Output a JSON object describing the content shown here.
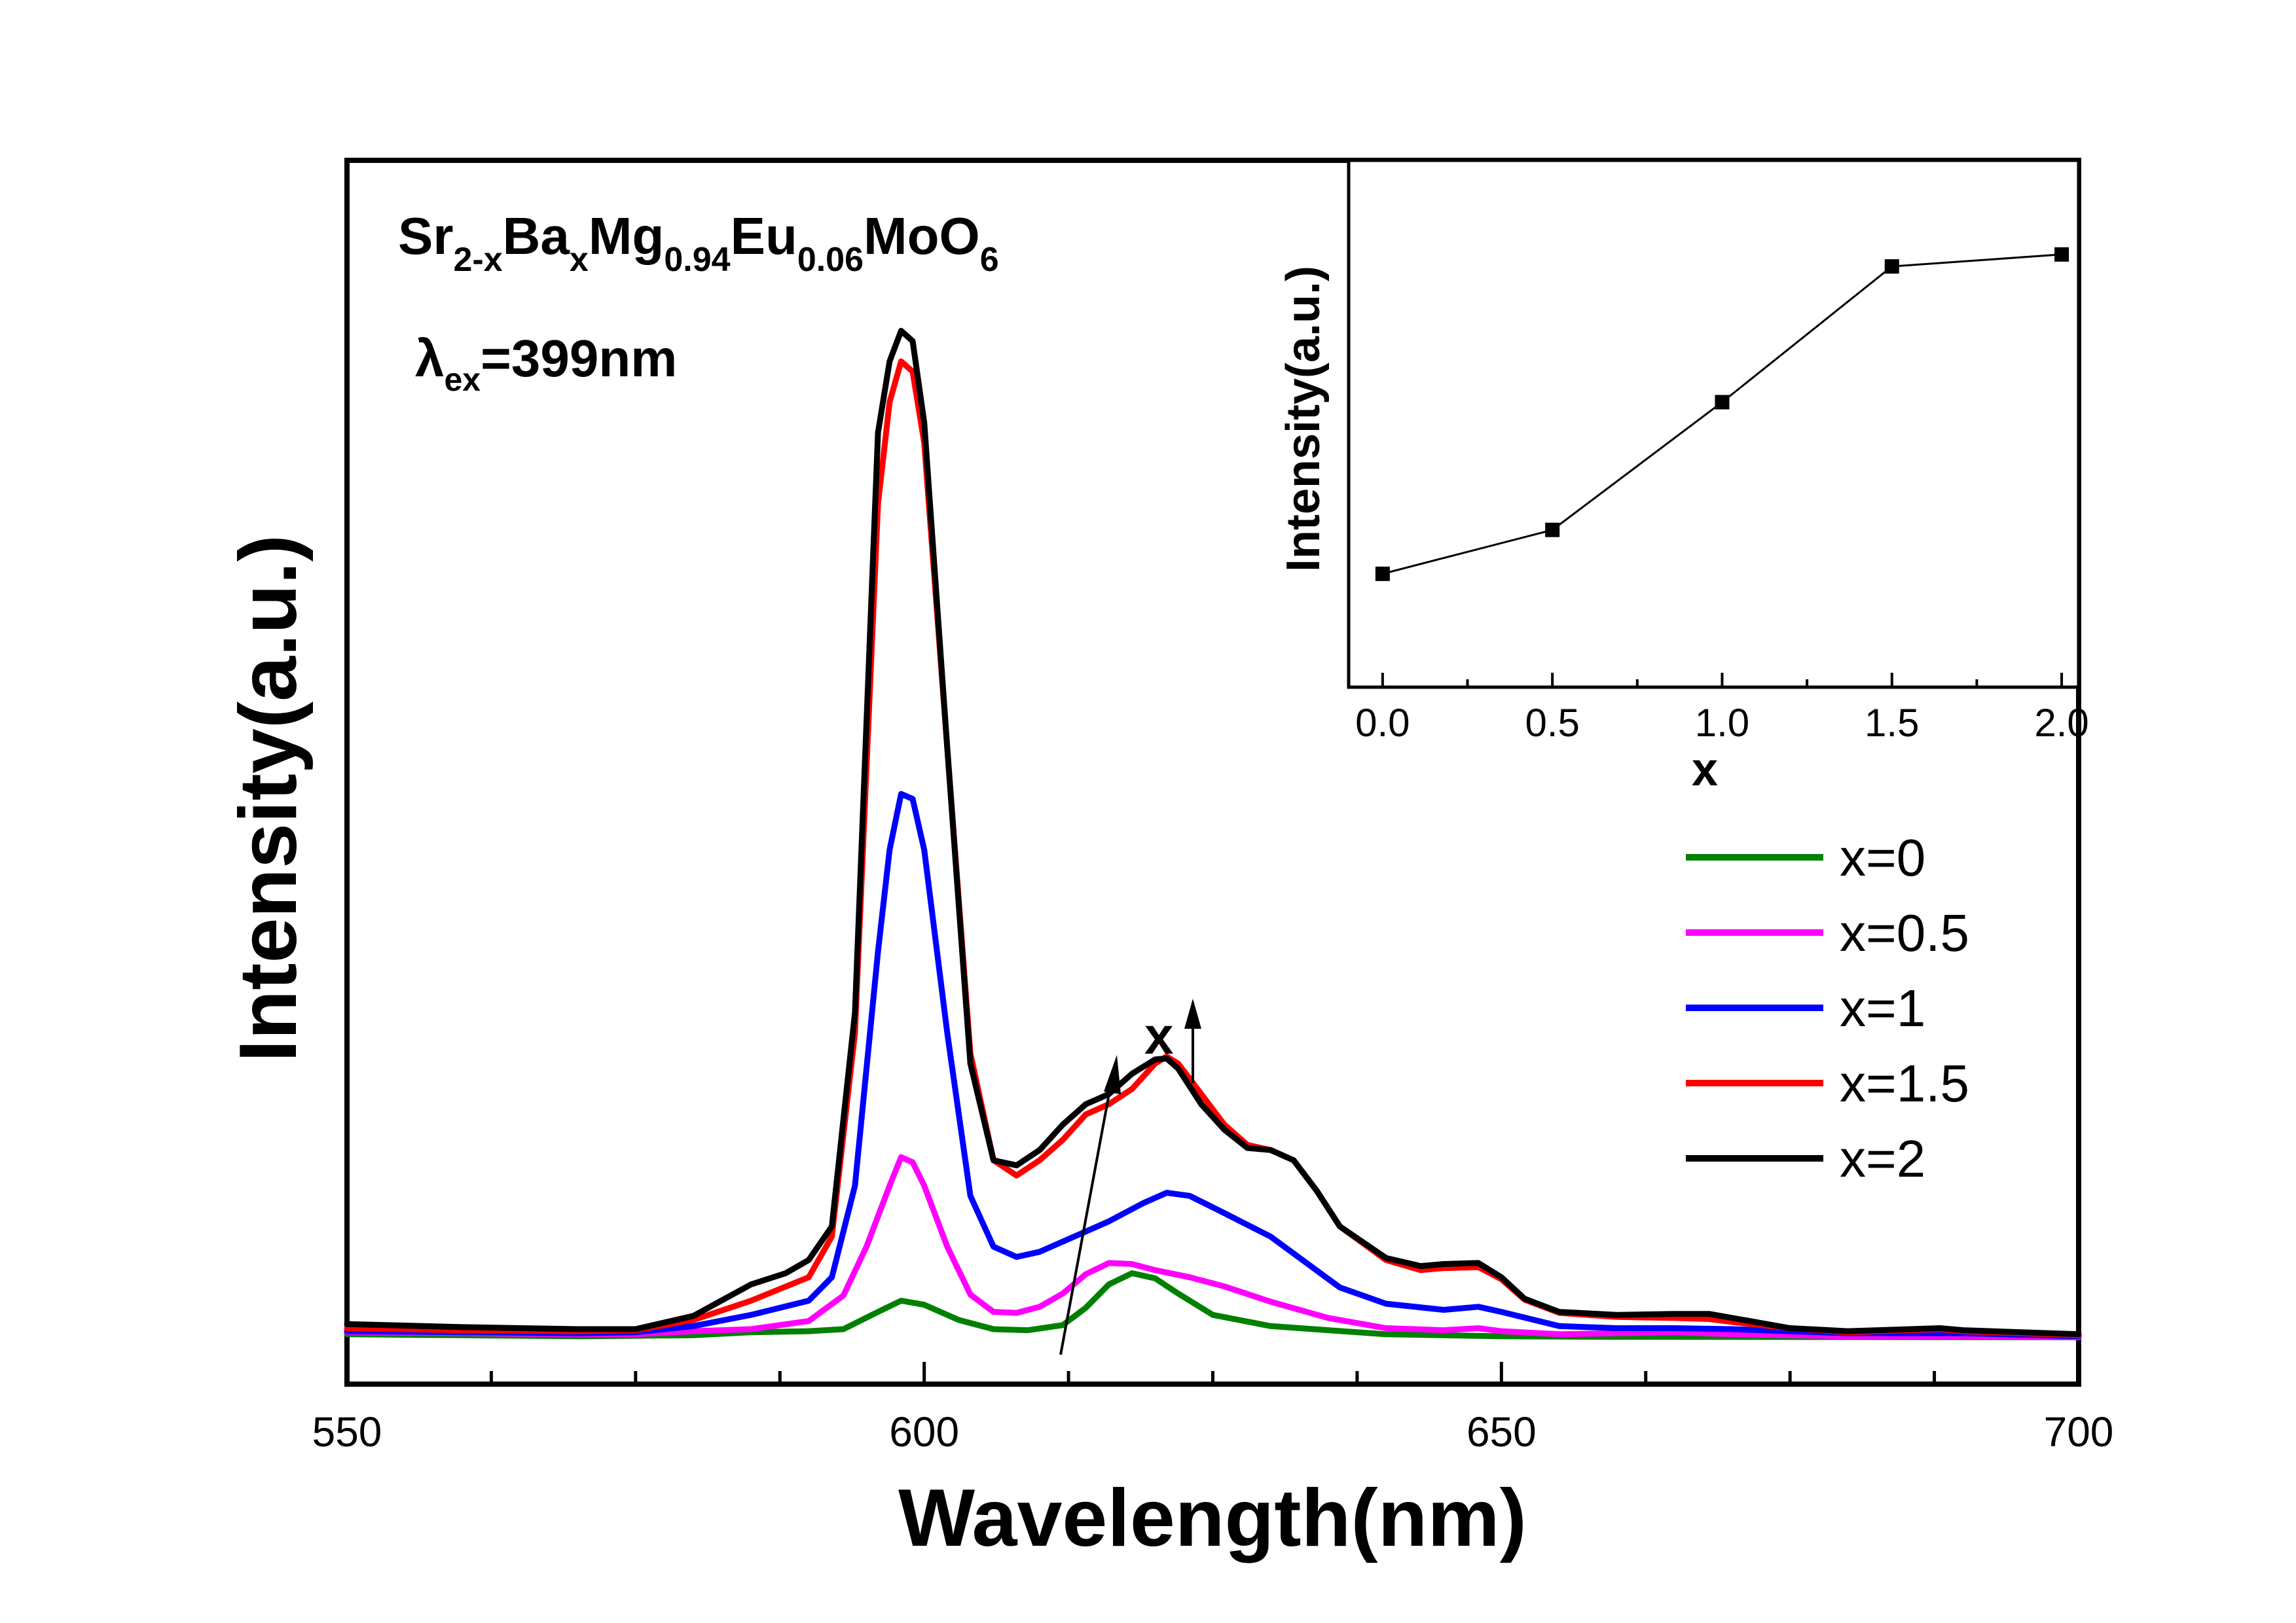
{
  "chart_data": [
    {
      "type": "line",
      "title": "",
      "xlabel": "Wavelength(nm)",
      "ylabel": "Intensity(a.u.)",
      "xlim": [
        550,
        700
      ],
      "ylim": [
        0,
        100
      ],
      "xticks": [
        550,
        600,
        650,
        700
      ],
      "yticks_shown": false,
      "grid": false,
      "legend_position": "right-middle",
      "annotations": {
        "formula": [
          {
            "t": "Sr",
            "sub": false
          },
          {
            "t": "2-x",
            "sub": true
          },
          {
            "t": "Ba",
            "sub": false
          },
          {
            "t": "x",
            "sub": true
          },
          {
            "t": "Mg",
            "sub": false
          },
          {
            "t": "0.94",
            "sub": true
          },
          {
            "t": "Eu",
            "sub": false
          },
          {
            "t": "0.06",
            "sub": true
          },
          {
            "t": "MoO",
            "sub": false
          },
          {
            "t": "6",
            "sub": true
          }
        ],
        "excitation": [
          {
            "t": "λ",
            "sub": false
          },
          {
            "t": "ex",
            "sub": true
          },
          {
            "t": "=399nm",
            "sub": false
          }
        ],
        "trend_label": "x"
      },
      "series": [
        {
          "name": "x=0",
          "color": "#008000",
          "points": [
            [
              550,
              0.4
            ],
            [
              560,
              0.3
            ],
            [
              570,
              0.2
            ],
            [
              580,
              0.3
            ],
            [
              585,
              0.6
            ],
            [
              590,
              0.7
            ],
            [
              593,
              0.9
            ],
            [
              596,
              2.6
            ],
            [
              598,
              3.7
            ],
            [
              600,
              3.3
            ],
            [
              603,
              1.8
            ],
            [
              606,
              0.9
            ],
            [
              609,
              0.8
            ],
            [
              612,
              1.3
            ],
            [
              614,
              3.0
            ],
            [
              616,
              5.3
            ],
            [
              618,
              6.4
            ],
            [
              620,
              5.9
            ],
            [
              622,
              4.4
            ],
            [
              625,
              2.3
            ],
            [
              630,
              1.2
            ],
            [
              635,
              0.8
            ],
            [
              640,
              0.4
            ],
            [
              650,
              0.2
            ],
            [
              660,
              0.15
            ],
            [
              700,
              0.1
            ]
          ]
        },
        {
          "name": "x=0.5",
          "color": "#FF00FF",
          "points": [
            [
              550,
              0.6
            ],
            [
              560,
              0.5
            ],
            [
              570,
              0.4
            ],
            [
              575,
              0.4
            ],
            [
              580,
              0.7
            ],
            [
              585,
              0.9
            ],
            [
              590,
              1.7
            ],
            [
              593,
              4.2
            ],
            [
              595,
              9.0
            ],
            [
              597,
              15.0
            ],
            [
              598,
              17.8
            ],
            [
              599,
              17.3
            ],
            [
              600,
              15.0
            ],
            [
              602,
              9.0
            ],
            [
              604,
              4.3
            ],
            [
              606,
              2.6
            ],
            [
              608,
              2.5
            ],
            [
              610,
              3.1
            ],
            [
              612,
              4.4
            ],
            [
              614,
              6.3
            ],
            [
              616,
              7.4
            ],
            [
              618,
              7.3
            ],
            [
              620,
              6.7
            ],
            [
              623,
              6.0
            ],
            [
              626,
              5.1
            ],
            [
              630,
              3.6
            ],
            [
              635,
              2.0
            ],
            [
              640,
              1.0
            ],
            [
              645,
              0.8
            ],
            [
              648,
              1.0
            ],
            [
              650,
              0.7
            ],
            [
              655,
              0.4
            ],
            [
              665,
              0.6
            ],
            [
              670,
              0.4
            ],
            [
              680,
              0.2
            ],
            [
              690,
              0.2
            ],
            [
              700,
              0.1
            ]
          ]
        },
        {
          "name": "x=1",
          "color": "#0000FF",
          "points": [
            [
              550,
              0.7
            ],
            [
              560,
              0.6
            ],
            [
              570,
              0.5
            ],
            [
              575,
              0.6
            ],
            [
              580,
              1.2
            ],
            [
              585,
              2.3
            ],
            [
              590,
              3.7
            ],
            [
              592,
              6.0
            ],
            [
              594,
              15.0
            ],
            [
              596,
              38.0
            ],
            [
              597,
              48.0
            ],
            [
              598,
              53.5
            ],
            [
              599,
              53.0
            ],
            [
              600,
              48.0
            ],
            [
              602,
              30.0
            ],
            [
              604,
              14.0
            ],
            [
              606,
              9.0
            ],
            [
              608,
              8.0
            ],
            [
              610,
              8.5
            ],
            [
              613,
              10.0
            ],
            [
              616,
              11.5
            ],
            [
              619,
              13.3
            ],
            [
              621,
              14.3
            ],
            [
              623,
              14.0
            ],
            [
              626,
              12.3
            ],
            [
              630,
              10.0
            ],
            [
              633,
              7.5
            ],
            [
              636,
              5.0
            ],
            [
              640,
              3.4
            ],
            [
              645,
              2.8
            ],
            [
              648,
              3.1
            ],
            [
              650,
              2.6
            ],
            [
              655,
              1.2
            ],
            [
              660,
              1.0
            ],
            [
              665,
              1.0
            ],
            [
              670,
              0.9
            ],
            [
              680,
              0.5
            ],
            [
              690,
              0.5
            ],
            [
              700,
              0.2
            ]
          ]
        },
        {
          "name": "x=1.5",
          "color": "#FF0000",
          "points": [
            [
              550,
              1.0
            ],
            [
              560,
              0.8
            ],
            [
              570,
              0.7
            ],
            [
              575,
              0.8
            ],
            [
              580,
              1.8
            ],
            [
              585,
              3.7
            ],
            [
              590,
              6.0
            ],
            [
              592,
              10.0
            ],
            [
              594,
              30.0
            ],
            [
              596,
              82.0
            ],
            [
              597,
              92.0
            ],
            [
              598,
              96.0
            ],
            [
              599,
              95.0
            ],
            [
              600,
              88.0
            ],
            [
              602,
              58.0
            ],
            [
              604,
              28.0
            ],
            [
              606,
              17.5
            ],
            [
              608,
              16.0
            ],
            [
              610,
              17.5
            ],
            [
              612,
              19.5
            ],
            [
              614,
              22.0
            ],
            [
              616,
              23.0
            ],
            [
              618,
              24.5
            ],
            [
              620,
              27.0
            ],
            [
              621,
              27.7
            ],
            [
              622,
              27.0
            ],
            [
              624,
              24.0
            ],
            [
              626,
              21.0
            ],
            [
              628,
              19.0
            ],
            [
              630,
              18.5
            ],
            [
              632,
              17.5
            ],
            [
              634,
              14.5
            ],
            [
              636,
              11.0
            ],
            [
              640,
              7.7
            ],
            [
              643,
              6.7
            ],
            [
              645,
              6.9
            ],
            [
              648,
              7.0
            ],
            [
              650,
              5.8
            ],
            [
              652,
              3.8
            ],
            [
              655,
              2.5
            ],
            [
              660,
              2.1
            ],
            [
              665,
              2.0
            ],
            [
              668,
              1.9
            ],
            [
              670,
              1.6
            ],
            [
              675,
              1.0
            ],
            [
              680,
              0.6
            ],
            [
              688,
              0.9
            ],
            [
              690,
              0.7
            ],
            [
              700,
              0.3
            ]
          ]
        },
        {
          "name": "x=2",
          "color": "#000000",
          "points": [
            [
              550,
              1.4
            ],
            [
              560,
              1.1
            ],
            [
              570,
              0.9
            ],
            [
              575,
              0.9
            ],
            [
              580,
              2.2
            ],
            [
              585,
              5.3
            ],
            [
              588,
              6.4
            ],
            [
              590,
              7.7
            ],
            [
              592,
              11.0
            ],
            [
              594,
              32.0
            ],
            [
              596,
              89.0
            ],
            [
              597,
              96.0
            ],
            [
              598,
              99.0
            ],
            [
              599,
              98.0
            ],
            [
              600,
              90.0
            ],
            [
              602,
              58.0
            ],
            [
              604,
              27.0
            ],
            [
              606,
              17.5
            ],
            [
              608,
              17.0
            ],
            [
              610,
              18.5
            ],
            [
              612,
              21.0
            ],
            [
              614,
              23.0
            ],
            [
              616,
              24.0
            ],
            [
              618,
              26.0
            ],
            [
              620,
              27.4
            ],
            [
              621,
              27.5
            ],
            [
              622,
              26.5
            ],
            [
              624,
              23.0
            ],
            [
              626,
              20.5
            ],
            [
              628,
              18.7
            ],
            [
              630,
              18.5
            ],
            [
              632,
              17.5
            ],
            [
              634,
              14.5
            ],
            [
              636,
              11.0
            ],
            [
              640,
              7.9
            ],
            [
              643,
              7.1
            ],
            [
              645,
              7.3
            ],
            [
              648,
              7.4
            ],
            [
              650,
              6.0
            ],
            [
              652,
              3.9
            ],
            [
              655,
              2.6
            ],
            [
              660,
              2.3
            ],
            [
              665,
              2.4
            ],
            [
              668,
              2.4
            ],
            [
              670,
              2.0
            ],
            [
              675,
              1.0
            ],
            [
              680,
              0.7
            ],
            [
              688,
              1.0
            ],
            [
              690,
              0.8
            ],
            [
              700,
              0.4
            ]
          ]
        }
      ]
    },
    {
      "type": "line",
      "title": "",
      "xlabel": "x",
      "ylabel": "Intensity(a.u.)",
      "xlim": [
        -0.1,
        2.05
      ],
      "ylim": [
        0,
        100
      ],
      "xticks": [
        "0.0",
        "0.5",
        "1.0",
        "1.5",
        "2.0"
      ],
      "yticks_shown": false,
      "grid": false,
      "series": [
        {
          "name": "",
          "color": "#000000",
          "marker": "square",
          "points": [
            [
              0.0,
              12
            ],
            [
              0.5,
              23
            ],
            [
              1.0,
              55
            ],
            [
              1.5,
              89
            ],
            [
              2.0,
              92
            ]
          ]
        }
      ]
    }
  ]
}
